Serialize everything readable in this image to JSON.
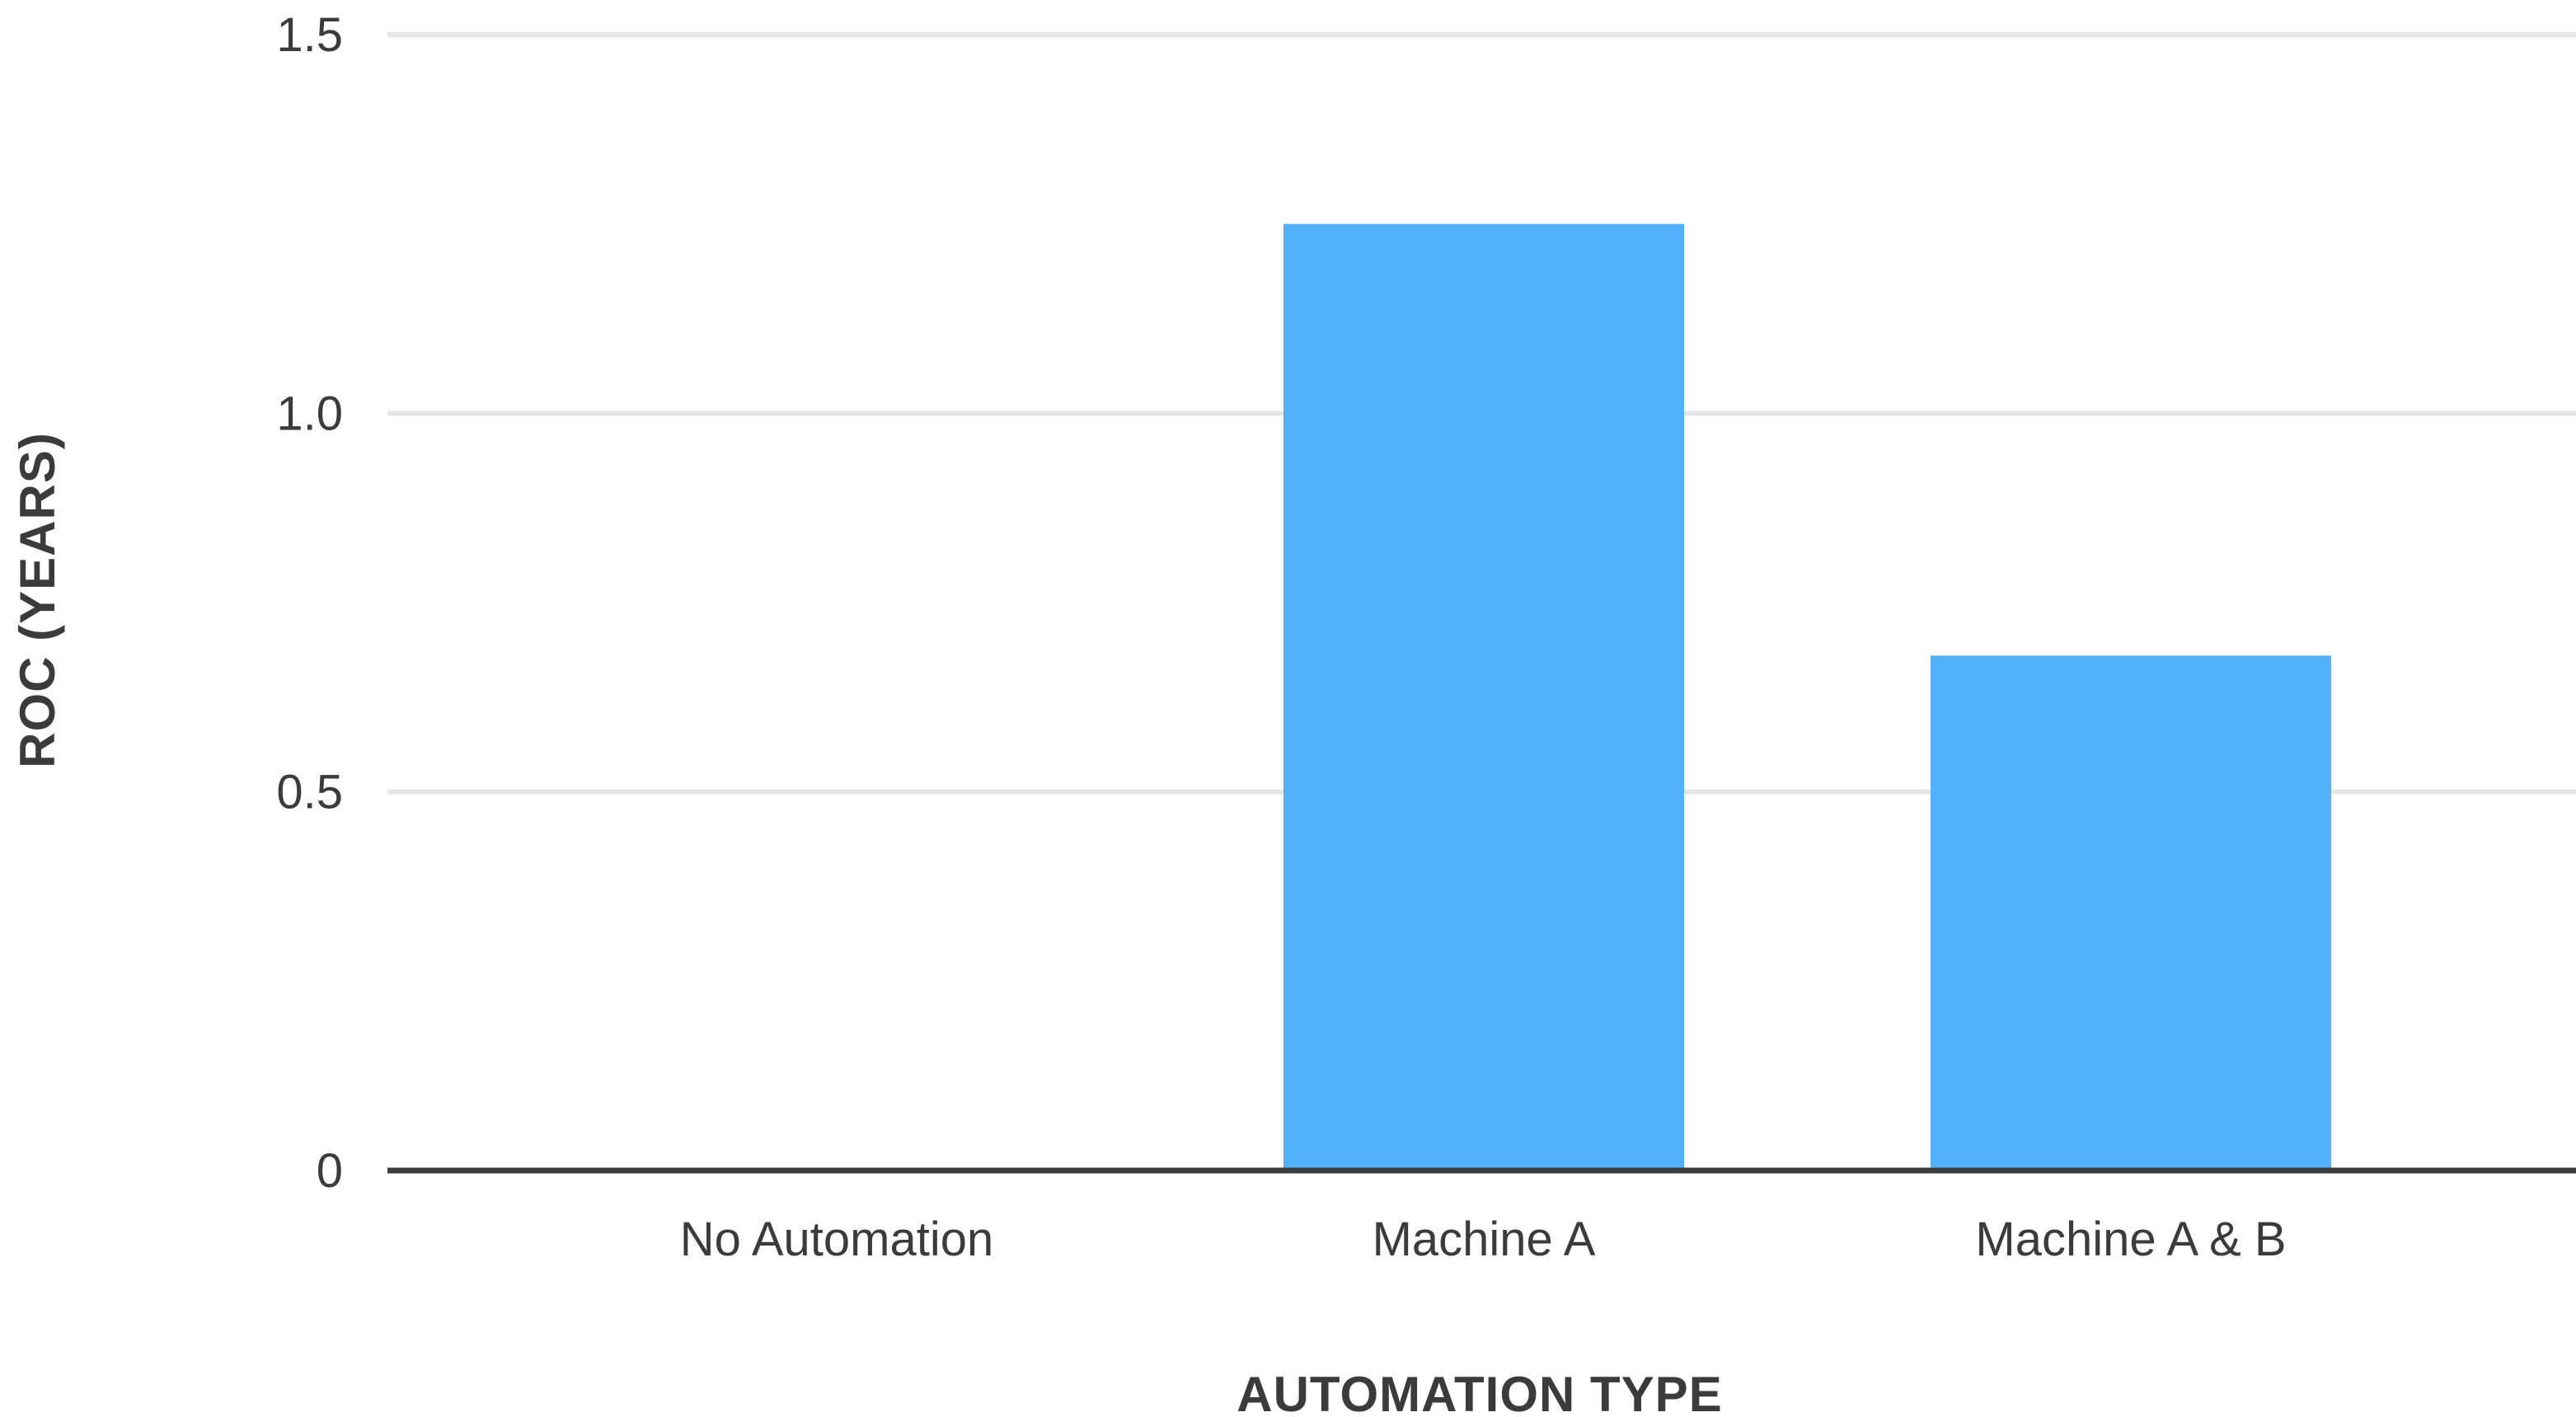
{
  "chart_data": {
    "type": "bar",
    "categories": [
      "No Automation",
      "Machine A",
      "Machine A & B"
    ],
    "series": [
      {
        "values": [
          0,
          1.25,
          0.68
        ]
      }
    ],
    "xlabel": "AUTOMATION TYPE",
    "ylabel": "ROC (YEARS)",
    "ylim": [
      0,
      1.5
    ],
    "yticks": [
      0,
      0.5,
      1.0,
      1.5
    ],
    "ytick_labels": [
      "0",
      "0.5",
      "1.0",
      "1.5"
    ],
    "grid": true,
    "bar_color": "#51b1f9",
    "gridline_color": "#e6e6e6",
    "baseline_color": "#3d3d3d",
    "text_color": "#3b3b3b"
  }
}
